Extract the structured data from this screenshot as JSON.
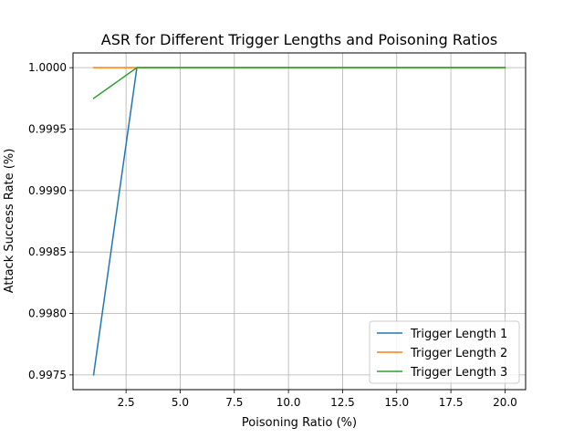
{
  "chart_data": {
    "type": "line",
    "title": "ASR for Different Trigger Lengths and Poisoning Ratios",
    "xlabel": "Poisoning Ratio (%)",
    "ylabel": "Attack Success Rate (%)",
    "xlim": [
      0.05,
      20.95
    ],
    "ylim": [
      0.99738,
      1.00012
    ],
    "xticks": [
      2.5,
      5.0,
      7.5,
      10.0,
      12.5,
      15.0,
      17.5,
      20.0
    ],
    "xtick_labels": [
      "2.5",
      "5.0",
      "7.5",
      "10.0",
      "12.5",
      "15.0",
      "17.5",
      "20.0"
    ],
    "yticks": [
      0.9975,
      0.998,
      0.9985,
      0.999,
      0.9995,
      1.0
    ],
    "ytick_labels": [
      "0.9975",
      "0.9980",
      "0.9985",
      "0.9990",
      "0.9995",
      "1.0000"
    ],
    "grid": true,
    "legend": "lower-right",
    "x": [
      1,
      3,
      5,
      7,
      10,
      12.5,
      15,
      17.5,
      20
    ],
    "series": [
      {
        "name": "Trigger Length 1",
        "color": "#1f77b4",
        "values": [
          0.9975,
          1.0,
          1.0,
          1.0,
          1.0,
          1.0,
          1.0,
          1.0,
          1.0
        ]
      },
      {
        "name": "Trigger Length 2",
        "color": "#ff7f0e",
        "values": [
          1.0,
          1.0,
          1.0,
          1.0,
          1.0,
          1.0,
          1.0,
          1.0,
          1.0
        ]
      },
      {
        "name": "Trigger Length 3",
        "color": "#2ca02c",
        "values": [
          0.99975,
          1.0,
          1.0,
          1.0,
          1.0,
          1.0,
          1.0,
          1.0,
          1.0
        ]
      }
    ]
  }
}
